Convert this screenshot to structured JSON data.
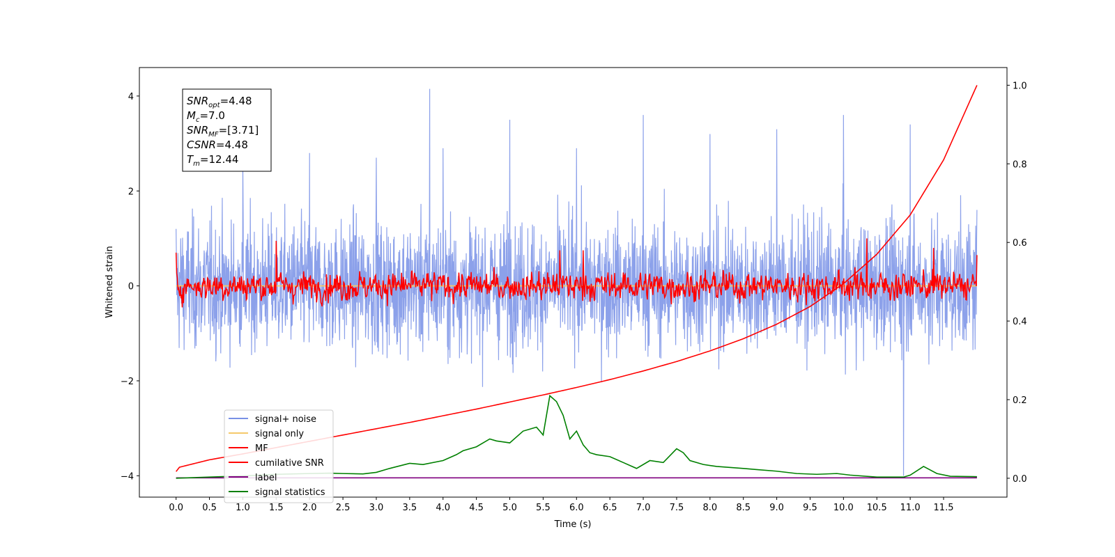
{
  "chart_data": {
    "type": "line",
    "xlabel": "Time (s)",
    "ylabel": "Whitened strain",
    "xlim": [
      -0.55,
      12.45
    ],
    "ylim_left": [
      -4.45,
      4.6
    ],
    "ylim_right": [
      -0.048,
      1.045
    ],
    "x_ticks": [
      0.0,
      0.5,
      1.0,
      1.5,
      2.0,
      2.5,
      3.0,
      3.5,
      4.0,
      4.5,
      5.0,
      5.5,
      6.0,
      6.5,
      7.0,
      7.5,
      8.0,
      8.5,
      9.0,
      9.5,
      10.0,
      10.5,
      11.0,
      11.5
    ],
    "x_tick_labels": [
      "0.0",
      "0.5",
      "1.0",
      "1.5",
      "2.0",
      "2.5",
      "3.0",
      "3.5",
      "4.0",
      "4.5",
      "5.0",
      "5.5",
      "6.0",
      "6.5",
      "7.0",
      "7.5",
      "8.0",
      "8.5",
      "9.0",
      "9.5",
      "10.0",
      "10.5",
      "11.0",
      "11.5"
    ],
    "y_left_ticks": [
      -4,
      -2,
      0,
      2,
      4
    ],
    "y_left_tick_labels": [
      "−4",
      "−2",
      "0",
      "2",
      "4"
    ],
    "y_right_ticks": [
      0.0,
      0.2,
      0.4,
      0.6,
      0.8,
      1.0
    ],
    "y_right_tick_labels": [
      "0.0",
      "0.2",
      "0.4",
      "0.6",
      "0.8",
      "1.0"
    ],
    "grid": false,
    "legend_position": "lower-left",
    "annotation": [
      {
        "base": "SNR",
        "sub": "opt",
        "value": "=4.48"
      },
      {
        "base": "M",
        "sub": "c",
        "value": "=7.0"
      },
      {
        "base": "SNR",
        "sub": "MF",
        "value": "=[3.71]"
      },
      {
        "base": "CSNR",
        "sub": "",
        "value": "=4.48"
      },
      {
        "base": "T",
        "sub": "m",
        "value": "=12.44"
      }
    ],
    "series": [
      {
        "name": "signal+ noise",
        "axis": "left",
        "color": "#7891e6",
        "description_values": "dense whitened noise, mostly within -2.9..2.9",
        "x": [
          0.0,
          1.0,
          2.0,
          3.0,
          3.8,
          4.0,
          5.0,
          6.0,
          7.0,
          8.0,
          9.0,
          10.0,
          10.9,
          11.0,
          12.0
        ],
        "y": [
          1.2,
          2.6,
          2.8,
          2.7,
          4.15,
          2.9,
          3.5,
          2.9,
          3.6,
          3.2,
          3.3,
          3.6,
          -4.0,
          3.4,
          1.6
        ]
      },
      {
        "name": "signal only",
        "axis": "left",
        "color": "#f5c96a",
        "x": [
          0.0,
          12.0
        ],
        "y": [
          0.0,
          0.0
        ]
      },
      {
        "name": "MF",
        "axis": "left",
        "color": "#ff0000",
        "x": [
          0.0,
          1.5,
          5.75,
          6.1,
          10.35,
          11.35,
          12.0
        ],
        "y": [
          0.7,
          0.95,
          0.75,
          0.75,
          1.0,
          0.8,
          0.65
        ]
      },
      {
        "name": "cumilative SNR",
        "axis": "right",
        "color": "#ff0000",
        "x": [
          0.0,
          0.05,
          0.5,
          1.0,
          1.5,
          2.0,
          2.5,
          3.0,
          3.5,
          4.0,
          4.5,
          5.0,
          5.5,
          6.0,
          6.5,
          7.0,
          7.5,
          8.0,
          8.5,
          9.0,
          9.5,
          10.0,
          10.5,
          11.0,
          11.5,
          12.0
        ],
        "y": [
          0.017,
          0.028,
          0.047,
          0.062,
          0.078,
          0.094,
          0.11,
          0.126,
          0.142,
          0.159,
          0.176,
          0.194,
          0.212,
          0.231,
          0.251,
          0.273,
          0.297,
          0.324,
          0.355,
          0.392,
          0.437,
          0.495,
          0.57,
          0.67,
          0.81,
          1.0
        ]
      },
      {
        "name": "label",
        "axis": "right",
        "color": "#800080",
        "x": [
          0.0,
          12.0
        ],
        "y": [
          0.001,
          0.001
        ]
      },
      {
        "name": "signal statistics",
        "axis": "right",
        "color": "#008000",
        "x": [
          0.0,
          0.5,
          1.0,
          1.5,
          2.0,
          2.3,
          2.5,
          2.8,
          3.0,
          3.2,
          3.5,
          3.7,
          4.0,
          4.2,
          4.3,
          4.5,
          4.7,
          4.8,
          5.0,
          5.2,
          5.4,
          5.5,
          5.6,
          5.7,
          5.8,
          5.9,
          6.0,
          6.1,
          6.2,
          6.3,
          6.5,
          6.7,
          6.9,
          7.1,
          7.3,
          7.5,
          7.6,
          7.7,
          7.9,
          8.1,
          8.5,
          8.7,
          9.0,
          9.3,
          9.6,
          9.9,
          10.1,
          10.5,
          10.9,
          11.0,
          11.2,
          11.4,
          11.6,
          12.0
        ],
        "y": [
          0.0,
          0.003,
          0.006,
          0.01,
          0.012,
          0.013,
          0.012,
          0.011,
          0.015,
          0.025,
          0.038,
          0.035,
          0.045,
          0.06,
          0.07,
          0.08,
          0.1,
          0.095,
          0.09,
          0.12,
          0.13,
          0.11,
          0.21,
          0.195,
          0.16,
          0.1,
          0.12,
          0.085,
          0.065,
          0.06,
          0.055,
          0.04,
          0.025,
          0.045,
          0.04,
          0.075,
          0.065,
          0.045,
          0.035,
          0.03,
          0.025,
          0.022,
          0.018,
          0.012,
          0.01,
          0.012,
          0.008,
          0.003,
          0.003,
          0.008,
          0.03,
          0.012,
          0.005,
          0.004
        ]
      }
    ]
  }
}
